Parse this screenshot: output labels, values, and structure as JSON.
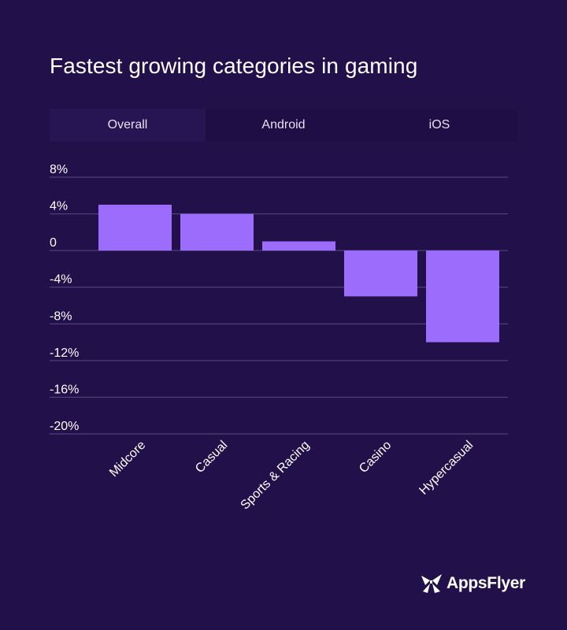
{
  "title": "Fastest growing categories in gaming",
  "tabs": [
    {
      "label": "Overall",
      "active": true
    },
    {
      "label": "Android",
      "active": false
    },
    {
      "label": "iOS",
      "active": false
    }
  ],
  "brand": {
    "name": "AppsFlyer",
    "logo_icon": "appsflyer-logo-icon"
  },
  "colors": {
    "background": "#21104a",
    "bar": "#9c6cfd",
    "grid": "#5a4a85"
  },
  "chart_data": {
    "type": "bar",
    "title": "Fastest growing categories in gaming",
    "categories": [
      "Midcore",
      "Casual",
      "Sports & Racing",
      "Casino",
      "Hypercasual"
    ],
    "values": [
      5,
      4,
      1,
      -5,
      -10
    ],
    "ylim": [
      -20,
      8
    ],
    "yticks": [
      8,
      4,
      0,
      -4,
      -8,
      -12,
      -16,
      -20
    ],
    "ytick_labels": [
      "8%",
      "4%",
      "0",
      "-4%",
      "-8%",
      "-12%",
      "-16%",
      "-20%"
    ],
    "unit": "%",
    "grid": true,
    "xlabel": "",
    "ylabel": ""
  }
}
